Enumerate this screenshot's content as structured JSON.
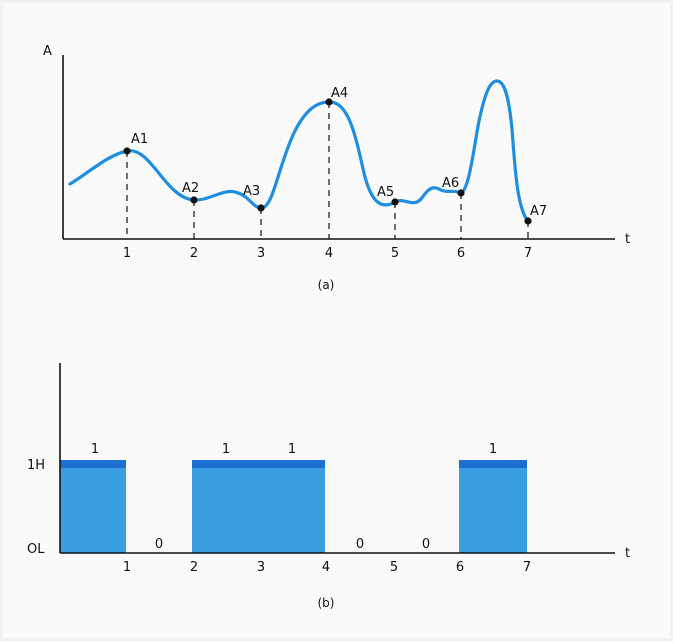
{
  "panel_a": {
    "y_axis_label": "A",
    "x_axis_label": "t",
    "ticks": [
      "1",
      "2",
      "3",
      "4",
      "5",
      "6",
      "7"
    ],
    "samples": [
      "A1",
      "A2",
      "A3",
      "A4",
      "A5",
      "A6",
      "A7"
    ],
    "caption": "(a)",
    "curve_color": "#1e8ee0"
  },
  "panel_b": {
    "y_high_label": "1H",
    "y_low_label": "OL",
    "x_axis_label": "t",
    "ticks": [
      "1",
      "2",
      "3",
      "4",
      "5",
      "6",
      "7"
    ],
    "bits": [
      "1",
      "0",
      "1",
      "1",
      "0",
      "0",
      "1"
    ],
    "caption": "(b)",
    "pulse_fill": "#3a9ee2",
    "pulse_top": "#1d6fd0"
  }
}
